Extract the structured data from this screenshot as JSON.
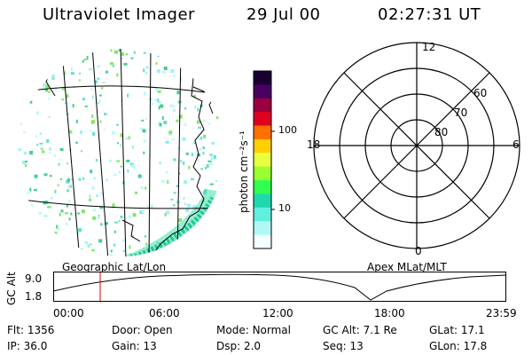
{
  "header": {
    "instrument": "Ultraviolet Imager",
    "date": "29 Jul 00",
    "time": "02:27:31 UT"
  },
  "geo_panel": {
    "label": "Geographic Lat/Lon"
  },
  "colorbar": {
    "unit_label": "photon cm⁻²s⁻¹",
    "ticks": [
      "100",
      "10"
    ],
    "colors": [
      "#1a0030",
      "#4a0060",
      "#9a0040",
      "#e00020",
      "#ff7000",
      "#ffd000",
      "#e8ff40",
      "#9aff30",
      "#30ff50",
      "#20d8b0",
      "#60f0e0",
      "#b0f8f8",
      "#f4ffff"
    ]
  },
  "polar_panel": {
    "label": "Apex MLat/MLT",
    "mlt_labels": {
      "top": "12",
      "left": "18",
      "right": "6",
      "bottom": "0"
    },
    "mlat_labels": [
      "60",
      "70",
      "80"
    ]
  },
  "altitude_plot": {
    "y_axis_label": "GC Alt",
    "y_ticks": [
      "9.0",
      "1.8"
    ],
    "x_ticks": [
      "00:00",
      "06:00",
      "12:00",
      "18:00",
      "23:59"
    ],
    "marker_color": "#e00000"
  },
  "footer": {
    "rows": [
      [
        {
          "key": "Flt:",
          "value": "1356"
        },
        {
          "key": "Door:",
          "value": "Open"
        },
        {
          "key": "Mode:",
          "value": "Normal"
        },
        {
          "key": "GC Alt:",
          "value": "7.1 Re"
        },
        {
          "key": "GLat:",
          "value": "17.1"
        }
      ],
      [
        {
          "key": "IP:",
          "value": "36.0"
        },
        {
          "key": "Gain:",
          "value": "13"
        },
        {
          "key": "Dsp:",
          "value": "2.0"
        },
        {
          "key": "Seq:",
          "value": "13"
        },
        {
          "key": "GLon:",
          "value": "17.8"
        }
      ]
    ]
  }
}
